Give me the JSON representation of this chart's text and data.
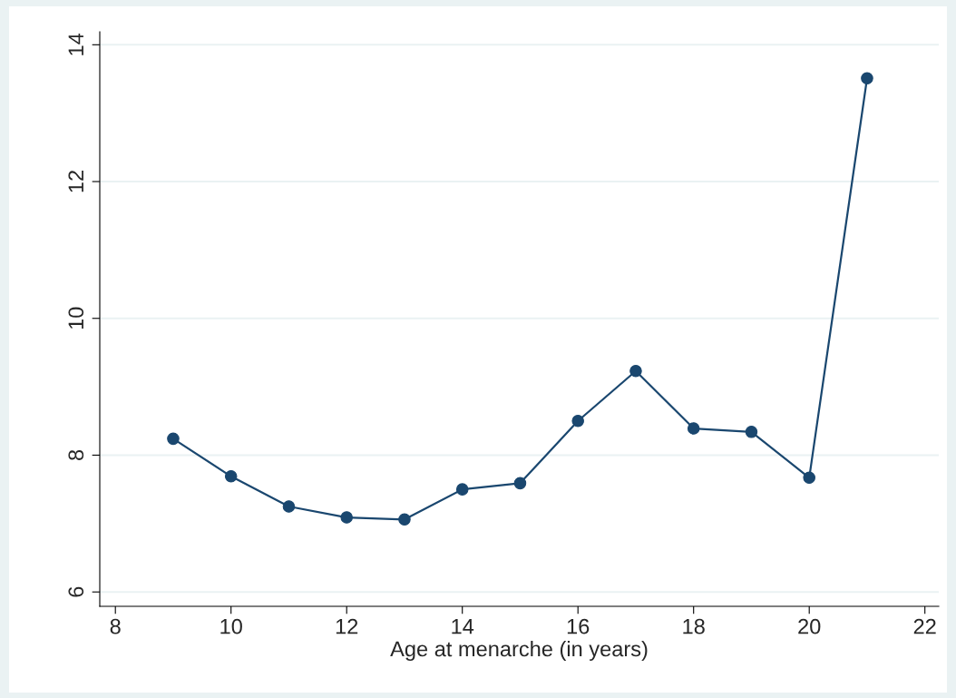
{
  "chart_data": {
    "type": "line",
    "xlabel": "Age at menarche (in years)",
    "x": [
      9,
      10,
      11,
      12,
      13,
      14,
      15,
      16,
      17,
      18,
      19,
      20,
      21
    ],
    "series": [
      {
        "color": "#1a476f",
        "values": [
          8.24,
          7.69,
          7.25,
          7.09,
          7.06,
          7.5,
          7.59,
          8.5,
          9.23,
          8.39,
          8.34,
          7.67,
          13.51
        ]
      }
    ],
    "xlim": [
      7.73,
      22.24
    ],
    "xticks": [
      8,
      10,
      12,
      14,
      16,
      18,
      20,
      22
    ],
    "ylim": [
      5.79,
      14.19
    ],
    "yticks": [
      6,
      8,
      10,
      12,
      14
    ],
    "grid": "y",
    "marker": "circle",
    "line_style": "solid"
  }
}
